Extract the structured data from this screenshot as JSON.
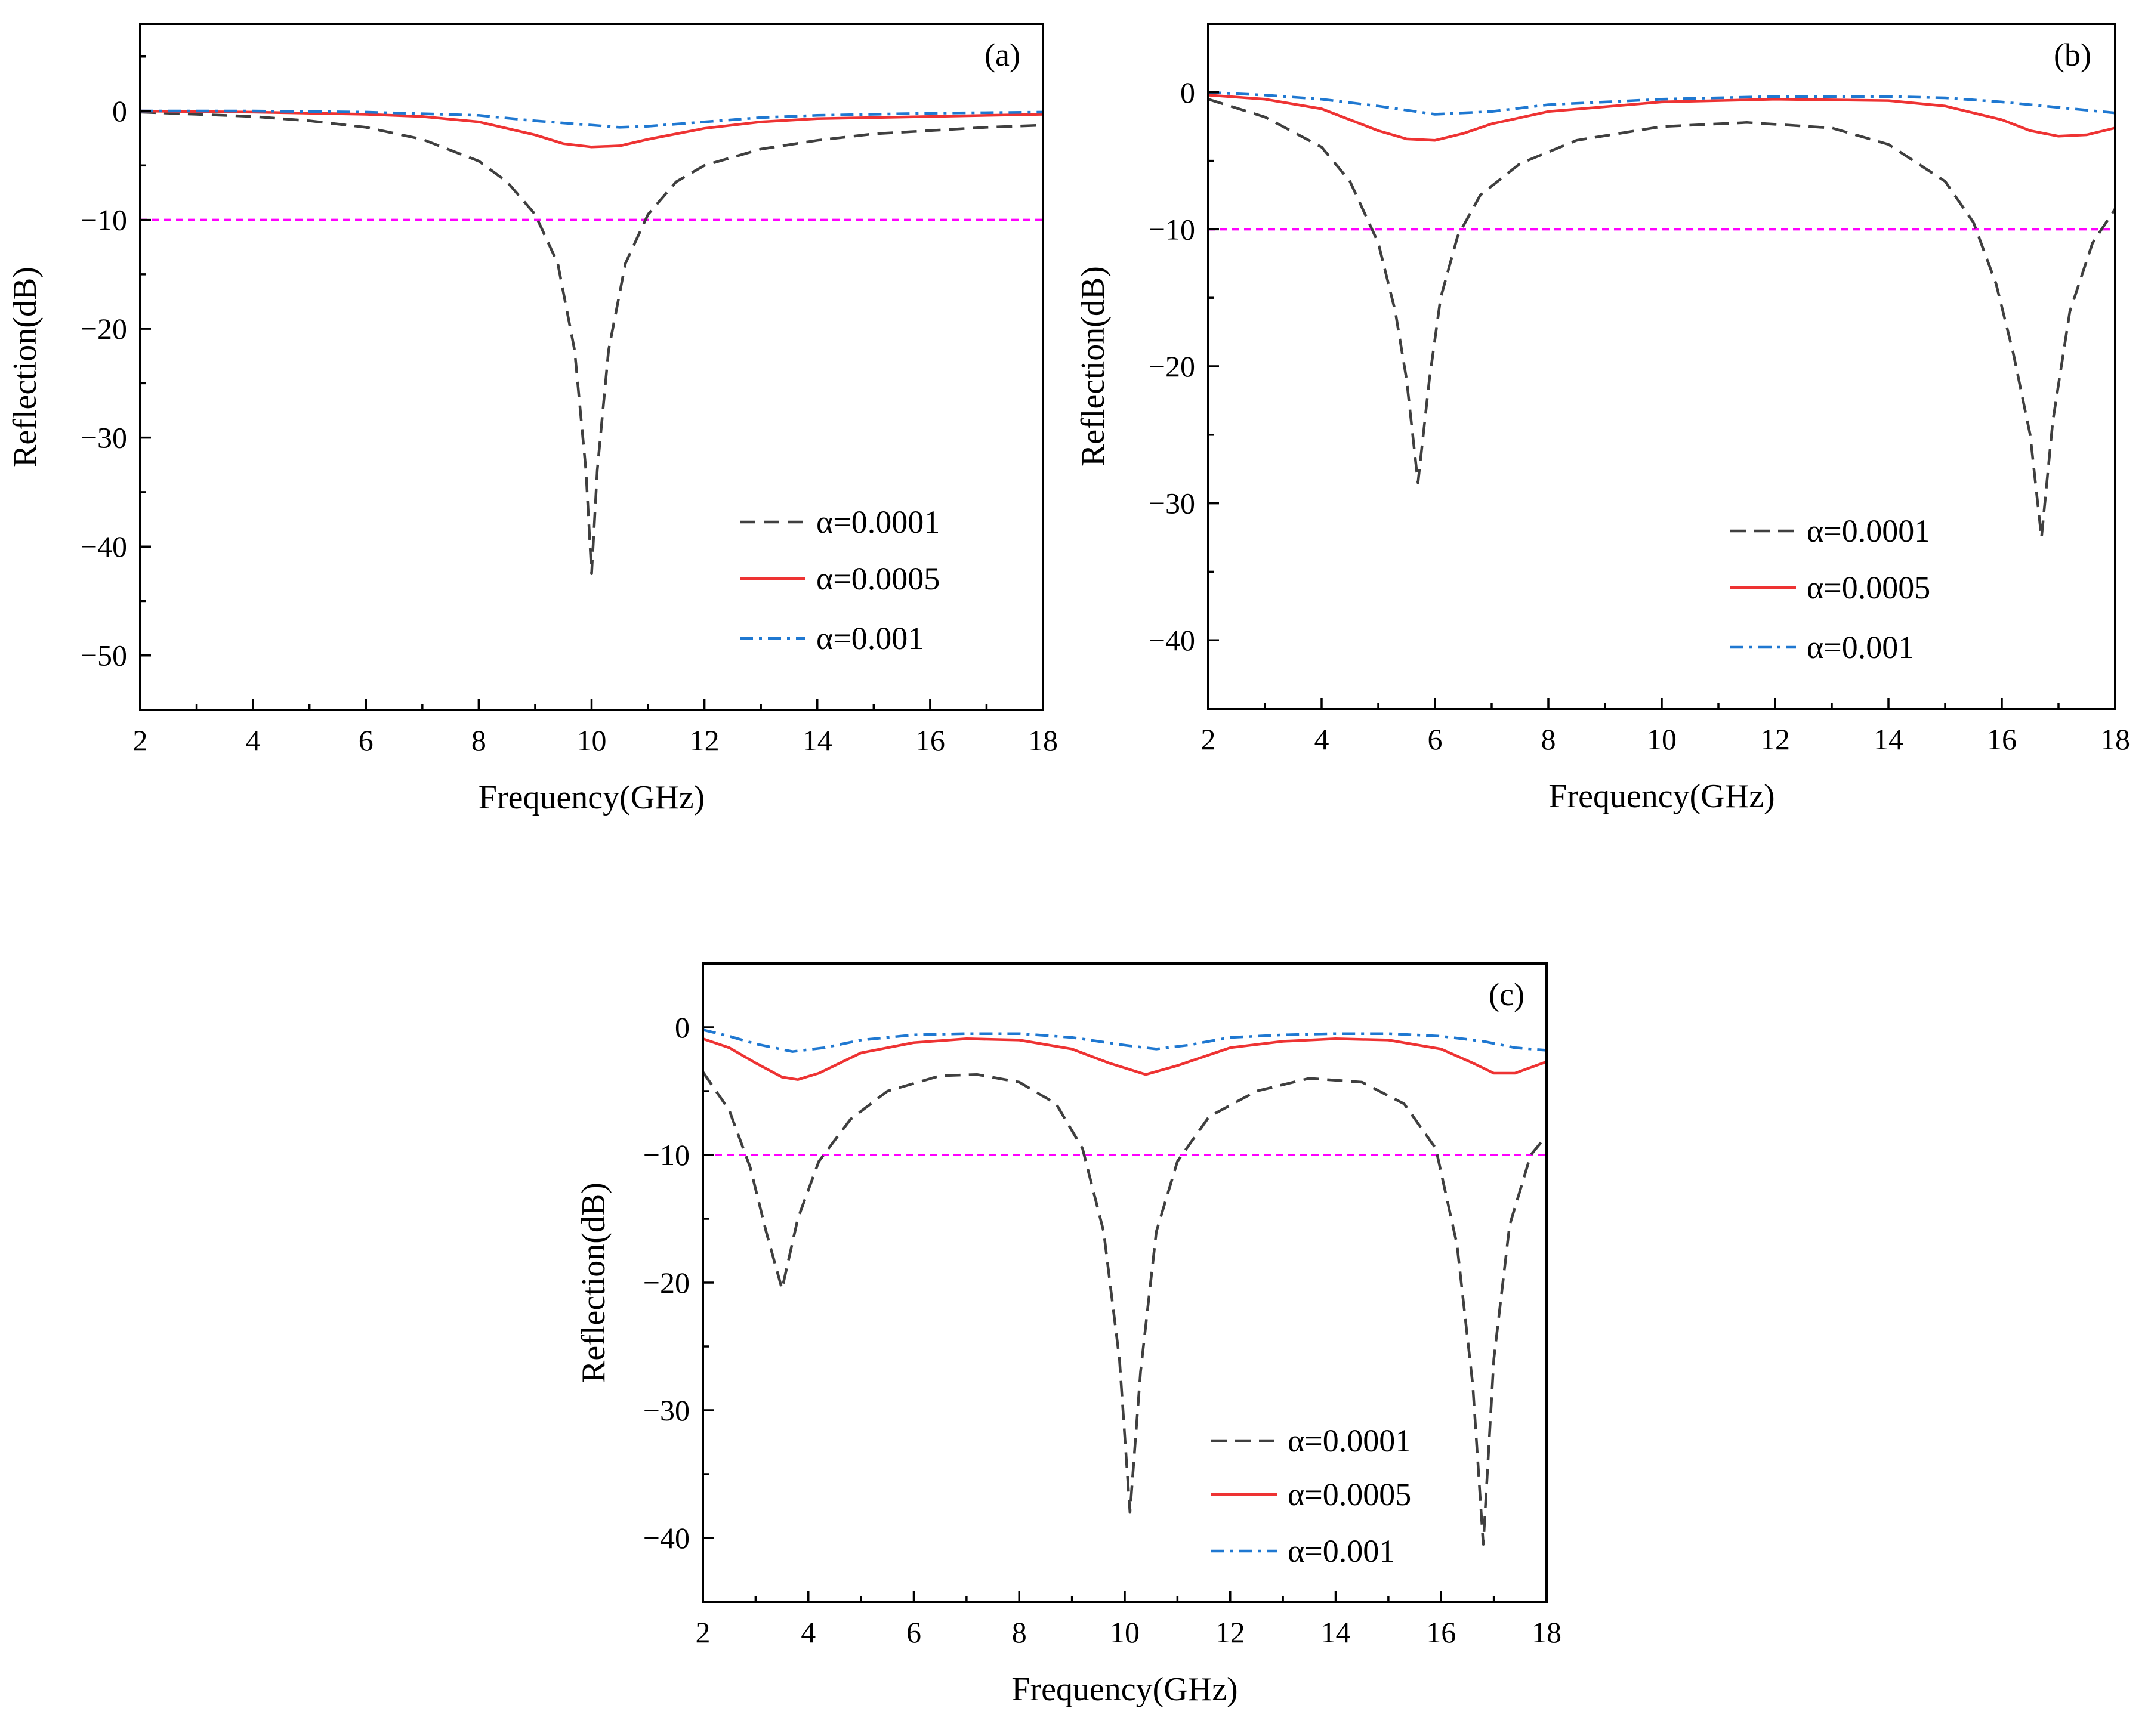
{
  "figure": {
    "description_panels": [
      "(a)",
      "(b)",
      "(c)"
    ]
  },
  "chart_data": [
    {
      "type": "line",
      "panel": "(a)",
      "xlabel": "Frequency(GHz)",
      "ylabel": "Reflection(dB)",
      "xlim": [
        2,
        18
      ],
      "ylim": [
        -55,
        8
      ],
      "xticks": [
        2,
        4,
        6,
        8,
        10,
        12,
        14,
        16,
        18
      ],
      "yticks": [
        0,
        -10,
        -20,
        -30,
        -40,
        -50
      ],
      "ytick_labels": [
        "0",
        "−10",
        "−20",
        "−30",
        "−40",
        "−50"
      ],
      "reference_line": {
        "y": -10,
        "color": "#ff00ff",
        "style": "dashed"
      },
      "legend_position": "lower-right",
      "series": [
        {
          "name": "α=0.0001",
          "color": "#3f3f3f",
          "style": "dashed",
          "x": [
            2,
            3,
            4,
            5,
            6,
            7,
            8,
            8.5,
            9,
            9.4,
            9.7,
            9.9,
            10,
            10.1,
            10.3,
            10.6,
            11,
            11.5,
            12,
            13,
            14,
            15,
            16,
            17,
            18
          ],
          "y": [
            -0.1,
            -0.3,
            -0.5,
            -0.9,
            -1.5,
            -2.6,
            -4.6,
            -6.5,
            -9.5,
            -14,
            -22,
            -33,
            -42.5,
            -33,
            -22,
            -14,
            -9.5,
            -6.5,
            -5,
            -3.5,
            -2.7,
            -2.1,
            -1.8,
            -1.5,
            -1.3
          ]
        },
        {
          "name": "α=0.0005",
          "color": "#ee3333",
          "style": "solid",
          "x": [
            2,
            4,
            6,
            7,
            8,
            9,
            9.5,
            10,
            10.5,
            11,
            12,
            13,
            14,
            16,
            18
          ],
          "y": [
            0,
            -0.1,
            -0.3,
            -0.5,
            -1.0,
            -2.2,
            -3.0,
            -3.3,
            -3.2,
            -2.6,
            -1.6,
            -1.0,
            -0.7,
            -0.5,
            -0.3
          ]
        },
        {
          "name": "α=0.001",
          "color": "#1f78d1",
          "style": "dashdot",
          "x": [
            2,
            4,
            6,
            8,
            9,
            10,
            10.5,
            11,
            12,
            13,
            14,
            16,
            18
          ],
          "y": [
            0,
            0,
            -0.1,
            -0.4,
            -0.9,
            -1.3,
            -1.5,
            -1.4,
            -1.0,
            -0.6,
            -0.4,
            -0.2,
            -0.1
          ]
        }
      ]
    },
    {
      "type": "line",
      "panel": "(b)",
      "xlabel": "Frequency(GHz)",
      "ylabel": "Reflection(dB)",
      "xlim": [
        2,
        18
      ],
      "ylim": [
        -45,
        5
      ],
      "xticks": [
        2,
        4,
        6,
        8,
        10,
        12,
        14,
        16,
        18
      ],
      "yticks": [
        0,
        -10,
        -20,
        -30,
        -40
      ],
      "ytick_labels": [
        "0",
        "−10",
        "−20",
        "−30",
        "−40"
      ],
      "reference_line": {
        "y": -10,
        "color": "#ff00ff",
        "style": "dashed"
      },
      "legend_position": "lower-right",
      "series": [
        {
          "name": "α=0.0001",
          "color": "#3f3f3f",
          "style": "dashed",
          "x": [
            2,
            3,
            4,
            4.5,
            5,
            5.3,
            5.5,
            5.7,
            5.9,
            6.1,
            6.4,
            6.8,
            7.5,
            8.5,
            10,
            11.5,
            13,
            14,
            15,
            15.5,
            15.9,
            16.2,
            16.5,
            16.7,
            16.9,
            17.2,
            17.6,
            18
          ],
          "y": [
            -0.5,
            -1.8,
            -4.0,
            -6.5,
            -11,
            -16,
            -21,
            -28.5,
            -21,
            -15,
            -10.5,
            -7.5,
            -5.2,
            -3.5,
            -2.5,
            -2.2,
            -2.6,
            -3.8,
            -6.5,
            -9.5,
            -14,
            -19,
            -25,
            -32.5,
            -24,
            -16,
            -11,
            -8.5
          ]
        },
        {
          "name": "α=0.0005",
          "color": "#ee3333",
          "style": "solid",
          "x": [
            2,
            3,
            4,
            5,
            5.5,
            6,
            6.5,
            7,
            8,
            10,
            12,
            14,
            15,
            16,
            16.5,
            17,
            17.5,
            18
          ],
          "y": [
            -0.2,
            -0.5,
            -1.2,
            -2.8,
            -3.4,
            -3.5,
            -3.0,
            -2.3,
            -1.4,
            -0.7,
            -0.5,
            -0.6,
            -1.0,
            -2.0,
            -2.8,
            -3.2,
            -3.1,
            -2.6
          ]
        },
        {
          "name": "α=0.001",
          "color": "#1f78d1",
          "style": "dashdot",
          "x": [
            2,
            3,
            4,
            5,
            6,
            7,
            8,
            10,
            12,
            14,
            15,
            16,
            17,
            18
          ],
          "y": [
            0,
            -0.2,
            -0.5,
            -1.0,
            -1.6,
            -1.4,
            -0.9,
            -0.5,
            -0.3,
            -0.3,
            -0.4,
            -0.7,
            -1.1,
            -1.5
          ]
        }
      ]
    },
    {
      "type": "line",
      "panel": "(c)",
      "xlabel": "Frequency(GHz)",
      "ylabel": "Reflection(dB)",
      "xlim": [
        2,
        18
      ],
      "ylim": [
        -45,
        5
      ],
      "xticks": [
        2,
        4,
        6,
        8,
        10,
        12,
        14,
        16,
        18
      ],
      "yticks": [
        0,
        -10,
        -20,
        -30,
        -40
      ],
      "ytick_labels": [
        "0",
        "−10",
        "−20",
        "−30",
        "−40"
      ],
      "reference_line": {
        "y": -10,
        "color": "#ff00ff",
        "style": "dashed"
      },
      "legend_position": "lower-right",
      "series": [
        {
          "name": "α=0.0001",
          "color": "#3f3f3f",
          "style": "dashed",
          "x": [
            2,
            2.5,
            2.9,
            3.2,
            3.5,
            3.8,
            4.2,
            4.8,
            5.5,
            6.5,
            7.2,
            8,
            8.7,
            9.2,
            9.6,
            9.9,
            10.1,
            10.3,
            10.6,
            11,
            11.6,
            12.5,
            13.5,
            14.5,
            15.3,
            15.9,
            16.3,
            16.6,
            16.8,
            17,
            17.3,
            17.7,
            18
          ],
          "y": [
            -3.5,
            -6.5,
            -11,
            -16,
            -20.5,
            -15,
            -10.5,
            -7.2,
            -5.0,
            -3.8,
            -3.7,
            -4.3,
            -6.0,
            -9.5,
            -16,
            -26,
            -38,
            -27,
            -16,
            -10.5,
            -7.0,
            -5.0,
            -4.0,
            -4.3,
            -6.0,
            -9.5,
            -17,
            -28,
            -40.5,
            -26,
            -15.5,
            -10,
            -8.5
          ]
        },
        {
          "name": "α=0.0005",
          "color": "#ee3333",
          "style": "solid",
          "x": [
            2,
            2.5,
            3,
            3.5,
            3.8,
            4.2,
            5,
            6,
            7,
            8,
            9,
            9.7,
            10.4,
            11,
            12,
            13,
            14,
            15,
            16,
            16.6,
            17,
            17.4,
            18
          ],
          "y": [
            -0.9,
            -1.6,
            -2.8,
            -3.9,
            -4.1,
            -3.6,
            -2.0,
            -1.2,
            -0.9,
            -1.0,
            -1.7,
            -2.8,
            -3.7,
            -3.0,
            -1.6,
            -1.1,
            -0.9,
            -1.0,
            -1.7,
            -2.8,
            -3.6,
            -3.6,
            -2.7
          ]
        },
        {
          "name": "α=0.001",
          "color": "#1f78d1",
          "style": "dashdot",
          "x": [
            2,
            2.5,
            3,
            3.7,
            4.3,
            5,
            6,
            7,
            8,
            9,
            10,
            10.6,
            11.2,
            12,
            13,
            14,
            15,
            16,
            16.8,
            17.4,
            18
          ],
          "y": [
            -0.2,
            -0.7,
            -1.3,
            -1.9,
            -1.6,
            -1.0,
            -0.6,
            -0.5,
            -0.5,
            -0.8,
            -1.4,
            -1.7,
            -1.4,
            -0.8,
            -0.6,
            -0.5,
            -0.5,
            -0.7,
            -1.1,
            -1.6,
            -1.8
          ]
        }
      ]
    }
  ]
}
